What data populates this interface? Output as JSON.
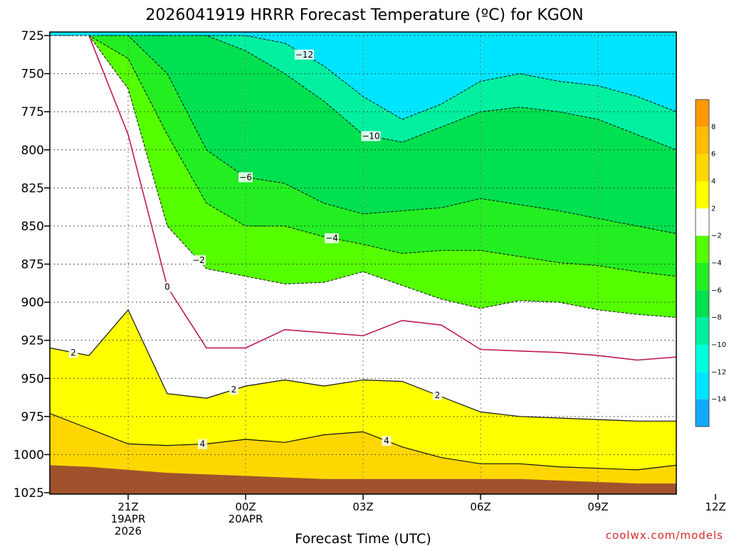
{
  "chart_data": {
    "type": "heatmap",
    "title": "2026041919 HRRR Forecast Temperature (ºC) for KGON",
    "xlabel": "Forecast Time (UTC)",
    "ylabel": "",
    "credit": "coolwx.com/models",
    "y_axis": {
      "ticks": [
        "725",
        "750",
        "775",
        "800",
        "825",
        "850",
        "875",
        "900",
        "925",
        "950",
        "975",
        "1000",
        "1025"
      ],
      "range": [
        725,
        1025
      ],
      "inverted": true
    },
    "x_axis": {
      "ticks": [
        {
          "line1": "21Z",
          "line2": "19APR",
          "line3": "2026"
        },
        {
          "line1": "00Z",
          "line2": "20APR",
          "line3": ""
        },
        {
          "line1": "03Z",
          "line2": "",
          "line3": ""
        },
        {
          "line1": "06Z",
          "line2": "",
          "line3": ""
        },
        {
          "line1": "09Z",
          "line2": "",
          "line3": ""
        },
        {
          "line1": "12Z",
          "line2": "",
          "line3": ""
        }
      ]
    },
    "grid": true,
    "colorbar": {
      "ticks": [
        "8",
        "6",
        "4",
        "2",
        "−2",
        "−4",
        "−6",
        "−8",
        "−10",
        "−12",
        "−14"
      ],
      "colors": [
        "#ff9900",
        "#ffbb00",
        "#ffd700",
        "#ffff00",
        "#ffffff",
        "#55ff00",
        "#22ee22",
        "#00e050",
        "#00f0a0",
        "#00ffdd",
        "#00e5ff",
        "#11aaff"
      ]
    },
    "contour_labels": [
      "−12",
      "−10",
      "−6",
      "−4",
      "−2",
      "0",
      "2",
      "2",
      "2",
      "4",
      "4"
    ],
    "contour_series": [
      {
        "level": -12,
        "x_hours": [
          0,
          1,
          2,
          3,
          4,
          5,
          6,
          7,
          8,
          9,
          10,
          11,
          12,
          13,
          14,
          15,
          16
        ],
        "pressure": [
          725,
          725,
          725,
          725,
          725,
          725,
          730,
          745,
          765,
          780,
          770,
          755,
          750,
          755,
          758,
          765,
          775
        ]
      },
      {
        "level": -10,
        "x_hours": [
          0,
          1,
          2,
          3,
          4,
          5,
          6,
          7,
          8,
          9,
          10,
          11,
          12,
          13,
          14,
          15,
          16
        ],
        "pressure": [
          725,
          725,
          725,
          725,
          725,
          735,
          750,
          768,
          790,
          795,
          785,
          775,
          772,
          775,
          780,
          790,
          800
        ]
      },
      {
        "level": -6,
        "x_hours": [
          0,
          1,
          2,
          3,
          4,
          5,
          6,
          7,
          8,
          9,
          10,
          11,
          12,
          13,
          14,
          15,
          16
        ],
        "pressure": [
          725,
          725,
          725,
          750,
          800,
          818,
          822,
          835,
          842,
          840,
          838,
          832,
          836,
          840,
          845,
          850,
          855
        ]
      },
      {
        "level": -4,
        "x_hours": [
          0,
          1,
          2,
          3,
          4,
          5,
          6,
          7,
          8,
          9,
          10,
          11,
          12,
          13,
          14,
          15,
          16
        ],
        "pressure": [
          725,
          725,
          740,
          790,
          835,
          850,
          850,
          857,
          862,
          868,
          866,
          866,
          870,
          874,
          876,
          880,
          883
        ]
      },
      {
        "level": -2,
        "x_hours": [
          1,
          2,
          3,
          4,
          5,
          6,
          7,
          8,
          9,
          10,
          11,
          12,
          13,
          14,
          15,
          16
        ],
        "pressure": [
          725,
          760,
          850,
          878,
          883,
          888,
          887,
          880,
          889,
          898,
          904,
          899,
          900,
          905,
          908,
          910
        ]
      },
      {
        "level": 0,
        "x_hours": [
          1,
          2,
          3,
          4,
          5,
          6,
          7,
          8,
          9,
          10,
          11,
          12,
          13,
          14,
          15,
          16
        ],
        "pressure": [
          725,
          790,
          890,
          930,
          930,
          918,
          920,
          922,
          912,
          915,
          931,
          932,
          933,
          935,
          938,
          936
        ]
      },
      {
        "level": 2,
        "x_hours": [
          0,
          1,
          2,
          3,
          4,
          5,
          6,
          7,
          8,
          9,
          10,
          11,
          12,
          13,
          14,
          15,
          16
        ],
        "pressure": [
          930,
          935,
          905,
          960,
          963,
          955,
          951,
          955,
          951,
          952,
          962,
          972,
          975,
          976,
          977,
          978,
          978
        ]
      },
      {
        "level": 4,
        "x_hours": [
          0,
          1,
          2,
          3,
          4,
          5,
          6,
          7,
          8,
          9,
          10,
          11,
          12,
          13,
          14,
          15,
          16
        ],
        "pressure": [
          973,
          983,
          993,
          994,
          993,
          990,
          992,
          987,
          985,
          995,
          1002,
          1006,
          1006,
          1008,
          1009,
          1010,
          1007
        ]
      }
    ],
    "surface_pressure": [
      1007,
      1008,
      1010,
      1012,
      1013,
      1014,
      1015,
      1016,
      1016,
      1016,
      1016,
      1016,
      1016,
      1017,
      1018,
      1019,
      1019
    ]
  }
}
